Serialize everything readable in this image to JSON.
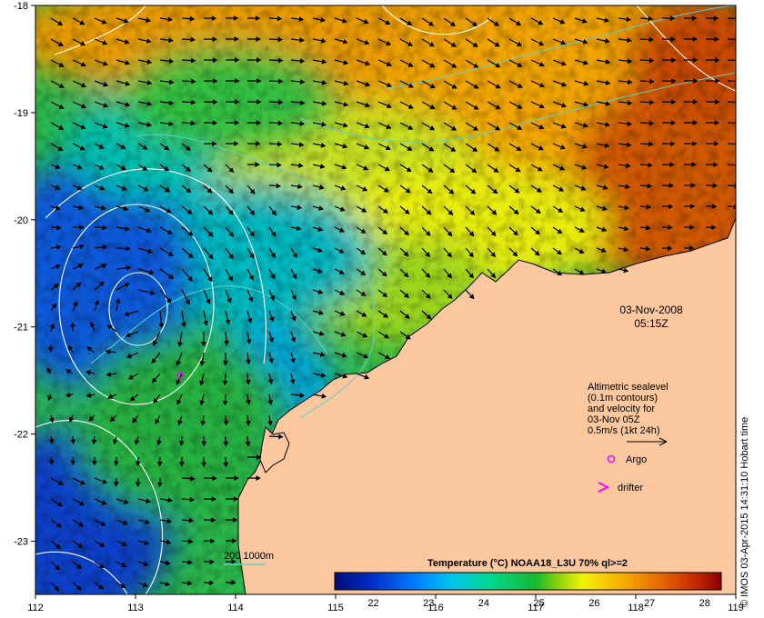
{
  "map": {
    "lon_ticks": [
      "112",
      "113",
      "114",
      "115",
      "116",
      "117",
      "118",
      "119"
    ],
    "lat_ticks": [
      "-18",
      "-19",
      "-20",
      "-21",
      "-22",
      "-23"
    ],
    "date": "03-Nov-2008",
    "time": "05:15Z",
    "legend_text": [
      "Altimetric sealevel",
      "(0.1m contours)",
      "and velocity for",
      "03-Nov 05Z",
      "0.5m/s (1kt 24h)"
    ],
    "argo_label": "Argo",
    "drifter_label": "drifter",
    "depth_label": "200  1000m",
    "colorbar_title": "Temperature (°C) NOAA18_L3U 70% ql>=2",
    "colorbar_ticks": [
      "22",
      "23",
      "24",
      "25",
      "26",
      "27",
      "28"
    ],
    "colorbar_range": [
      21.3,
      28.3
    ],
    "credit": "© IMOS 03-Apr-2015 14:31:10 Hobart time",
    "colors": {
      "land": "#fac79e",
      "contour": "#ffffff",
      "isobath": "#62d1c8",
      "argo": "#ff00ff",
      "drifter": "#ff00ff"
    }
  }
}
